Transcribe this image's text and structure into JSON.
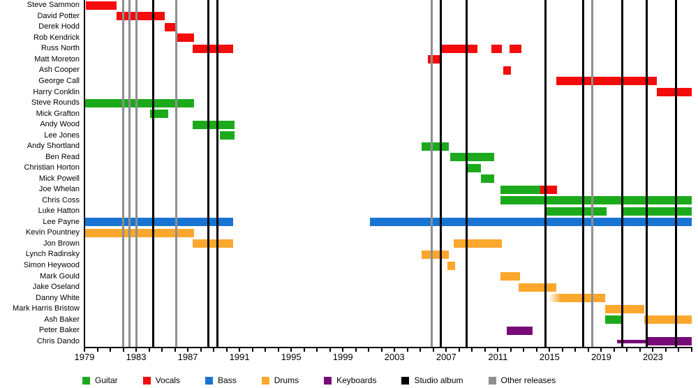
{
  "chart_data": {
    "type": "timeline",
    "title": "",
    "x_axis": {
      "min": 1979,
      "max": 2026,
      "labeled_years": [
        1979,
        1983,
        1987,
        1991,
        1995,
        1999,
        2003,
        2007,
        2011,
        2015,
        2019,
        2023
      ],
      "minor_tick_step": 1
    },
    "colors": {
      "guitar": "#1caa1c",
      "vocals": "#f40b0b",
      "bass": "#1874d2",
      "drums": "#fba72d",
      "keyboards": "#780a78",
      "studio_album": "#000000",
      "other_release": "#8f8f8f",
      "axis": "#000000"
    },
    "members": [
      {
        "name": "Steve Sammon",
        "segments": [
          {
            "role": "vocals",
            "start": 1979.1,
            "end": 1981.5
          }
        ]
      },
      {
        "name": "David Potter",
        "segments": [
          {
            "role": "vocals",
            "start": 1981.5,
            "end": 1985.2
          }
        ]
      },
      {
        "name": "Derek Hodd",
        "segments": [
          {
            "role": "vocals",
            "start": 1985.2,
            "end": 1986.1
          }
        ]
      },
      {
        "name": "Rob Kendrick",
        "segments": [
          {
            "role": "vocals",
            "start": 1986.0,
            "end": 1987.5
          }
        ]
      },
      {
        "name": "Russ North",
        "segments": [
          {
            "role": "vocals",
            "start": 1987.4,
            "end": 1990.5
          },
          {
            "role": "vocals",
            "start": 2006.6,
            "end": 2009.4
          },
          {
            "role": "vocals",
            "start": 2010.5,
            "end": 2011.3
          },
          {
            "role": "vocals",
            "start": 2011.9,
            "end": 2012.8
          }
        ]
      },
      {
        "name": "Matt Moreton",
        "segments": [
          {
            "role": "vocals",
            "start": 2005.6,
            "end": 2006.6
          }
        ]
      },
      {
        "name": "Ash Cooper",
        "segments": [
          {
            "role": "vocals",
            "start": 2011.4,
            "end": 2012.0
          }
        ]
      },
      {
        "name": "George Call",
        "segments": [
          {
            "role": "vocals",
            "start": 2015.5,
            "end": 2023.3
          }
        ]
      },
      {
        "name": "Harry Conklin",
        "segments": [
          {
            "role": "vocals",
            "start": 2023.3,
            "end": 2026.0
          }
        ]
      },
      {
        "name": "Steve Rounds",
        "segments": [
          {
            "role": "guitar",
            "start": 1979.0,
            "end": 1987.5
          }
        ]
      },
      {
        "name": "Mick Grafton",
        "segments": [
          {
            "role": "guitar",
            "start": 1984.1,
            "end": 1985.5
          }
        ]
      },
      {
        "name": "Andy Wood",
        "segments": [
          {
            "role": "guitar",
            "start": 1987.4,
            "end": 1990.6
          }
        ]
      },
      {
        "name": "Lee Jones",
        "segments": [
          {
            "role": "guitar",
            "start": 1989.5,
            "end": 1990.6
          }
        ]
      },
      {
        "name": "Andy Shortland",
        "segments": [
          {
            "role": "guitar",
            "start": 2005.1,
            "end": 2007.2
          }
        ]
      },
      {
        "name": "Ben Read",
        "segments": [
          {
            "role": "guitar",
            "start": 2007.3,
            "end": 2010.7
          }
        ]
      },
      {
        "name": "Christian Horton",
        "segments": [
          {
            "role": "guitar",
            "start": 2008.6,
            "end": 2009.7
          }
        ]
      },
      {
        "name": "Mick Powell",
        "segments": [
          {
            "role": "guitar",
            "start": 2009.7,
            "end": 2010.7
          }
        ]
      },
      {
        "name": "Joe Whelan",
        "segments": [
          {
            "role": "guitar",
            "start": 2011.2,
            "end": 2014.3
          },
          {
            "role": "vocals",
            "start": 2014.3,
            "end": 2015.6
          }
        ]
      },
      {
        "name": "Chris Coss",
        "segments": [
          {
            "role": "guitar",
            "start": 2011.2,
            "end": 2026.0
          }
        ]
      },
      {
        "name": "Luke Hatton",
        "segments": [
          {
            "role": "guitar",
            "start": 2014.7,
            "end": 2019.4
          },
          {
            "role": "guitar",
            "start": 2020.6,
            "end": 2026.0
          }
        ]
      },
      {
        "name": "Lee Payne",
        "segments": [
          {
            "role": "bass",
            "start": 1979.0,
            "end": 1990.5
          },
          {
            "role": "bass",
            "start": 2001.1,
            "end": 2026.0
          }
        ]
      },
      {
        "name": "Kevin Pountney",
        "segments": [
          {
            "role": "drums",
            "start": 1979.0,
            "end": 1987.5
          }
        ]
      },
      {
        "name": "Jon Brown",
        "segments": [
          {
            "role": "drums",
            "start": 1987.4,
            "end": 1990.5
          },
          {
            "role": "drums",
            "start": 2007.6,
            "end": 2011.3
          }
        ]
      },
      {
        "name": "Lynch Radinsky",
        "segments": [
          {
            "role": "drums",
            "start": 2005.1,
            "end": 2007.2
          }
        ]
      },
      {
        "name": "Simon Heywood",
        "segments": [
          {
            "role": "drums",
            "start": 2007.1,
            "end": 2007.7
          }
        ]
      },
      {
        "name": "Mark Gould",
        "segments": [
          {
            "role": "drums",
            "start": 2011.2,
            "end": 2012.7
          }
        ]
      },
      {
        "name": "Jake Oseland",
        "segments": [
          {
            "role": "drums",
            "start": 2012.6,
            "end": 2015.5
          }
        ]
      },
      {
        "name": "Danny White",
        "segments": [
          {
            "role": "drums",
            "start": 2014.9,
            "end": 2019.3,
            "style": "fade-left"
          }
        ]
      },
      {
        "name": "Mark Harris Bristow",
        "segments": [
          {
            "role": "drums",
            "start": 2019.3,
            "end": 2022.3
          }
        ]
      },
      {
        "name": "Ash Baker",
        "segments": [
          {
            "role": "guitar",
            "start": 2019.3,
            "end": 2020.7
          },
          {
            "role": "drums",
            "start": 2022.3,
            "end": 2026.0
          }
        ]
      },
      {
        "name": "Peter Baker",
        "segments": [
          {
            "role": "keyboards",
            "start": 2011.7,
            "end": 2013.7
          }
        ]
      },
      {
        "name": "Chris Dando",
        "segments": [
          {
            "role": "keyboards",
            "start": 2020.2,
            "end": 2022.6,
            "style": "thin"
          },
          {
            "role": "keyboards",
            "start": 2022.6,
            "end": 2026.0
          }
        ]
      }
    ],
    "events": {
      "studio_album_years": [
        1984.3,
        1988.6,
        1989.3,
        2006.6,
        2008.6,
        2014.7,
        2017.6,
        2020.6,
        2022.5,
        2024.8
      ],
      "other_release_years": [
        1982.0,
        1982.5,
        1983.0,
        1986.1,
        2005.9,
        2018.3
      ]
    },
    "legend": [
      {
        "key": "guitar",
        "label": "Guitar"
      },
      {
        "key": "vocals",
        "label": "Vocals"
      },
      {
        "key": "bass",
        "label": "Bass"
      },
      {
        "key": "drums",
        "label": "Drums"
      },
      {
        "key": "keyboards",
        "label": "Keyboards"
      },
      {
        "key": "studio_album",
        "label": "Studio album"
      },
      {
        "key": "other_release",
        "label": "Other releases"
      }
    ]
  }
}
